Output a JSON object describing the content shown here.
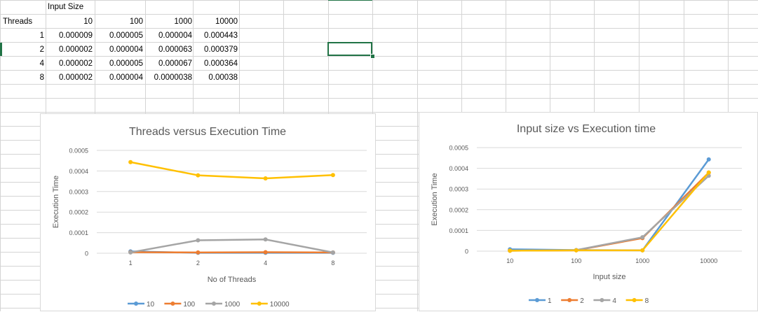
{
  "sheet": {
    "header_row": {
      "label": "Input Size"
    },
    "col_label": "Threads",
    "input_sizes": [
      "10",
      "100",
      "1000",
      "10000"
    ],
    "rows": [
      {
        "threads": "1",
        "values": [
          "0.000009",
          "0.000005",
          "0.000004",
          "0.000443"
        ]
      },
      {
        "threads": "2",
        "values": [
          "0.000002",
          "0.000004",
          "0.000063",
          "0.000379"
        ]
      },
      {
        "threads": "4",
        "values": [
          "0.000002",
          "0.000005",
          "0.000067",
          "0.000364"
        ]
      },
      {
        "threads": "8",
        "values": [
          "0.000002",
          "0.000004",
          "0.0000038",
          "0.00038"
        ]
      }
    ]
  },
  "chart_data": [
    {
      "type": "line",
      "title": "Threads versus Execution Time",
      "xlabel": "No of Threads",
      "ylabel": "Execution Time",
      "categories": [
        "1",
        "2",
        "4",
        "8"
      ],
      "ylim": [
        0,
        0.0005
      ],
      "yticks": [
        "0",
        "0.0001",
        "0.0002",
        "0.0003",
        "0.0004",
        "0.0005"
      ],
      "legend_position": "bottom",
      "series": [
        {
          "name": "10",
          "color": "#5b9bd5",
          "values": [
            9e-06,
            2e-06,
            2e-06,
            2e-06
          ]
        },
        {
          "name": "100",
          "color": "#ed7d31",
          "values": [
            5e-06,
            4e-06,
            5e-06,
            4e-06
          ]
        },
        {
          "name": "1000",
          "color": "#a5a5a5",
          "values": [
            4e-06,
            6.3e-05,
            6.7e-05,
            3.8e-06
          ]
        },
        {
          "name": "10000",
          "color": "#ffc000",
          "values": [
            0.000443,
            0.000379,
            0.000364,
            0.00038
          ]
        }
      ]
    },
    {
      "type": "line",
      "title": "Input size vs Execution time",
      "xlabel": "Input size",
      "ylabel": "Execution Time",
      "categories": [
        "10",
        "100",
        "1000",
        "10000"
      ],
      "ylim": [
        0,
        0.0005
      ],
      "yticks": [
        "0",
        "0.0001",
        "0.0002",
        "0.0003",
        "0.0004",
        "0.0005"
      ],
      "legend_position": "bottom",
      "series": [
        {
          "name": "1",
          "color": "#5b9bd5",
          "values": [
            9e-06,
            5e-06,
            4e-06,
            0.000443
          ]
        },
        {
          "name": "2",
          "color": "#ed7d31",
          "values": [
            2e-06,
            4e-06,
            6.3e-05,
            0.000379
          ]
        },
        {
          "name": "4",
          "color": "#a5a5a5",
          "values": [
            2e-06,
            5e-06,
            6.7e-05,
            0.000364
          ]
        },
        {
          "name": "8",
          "color": "#ffc000",
          "values": [
            2e-06,
            4e-06,
            3.8e-06,
            0.00038
          ]
        }
      ]
    }
  ]
}
